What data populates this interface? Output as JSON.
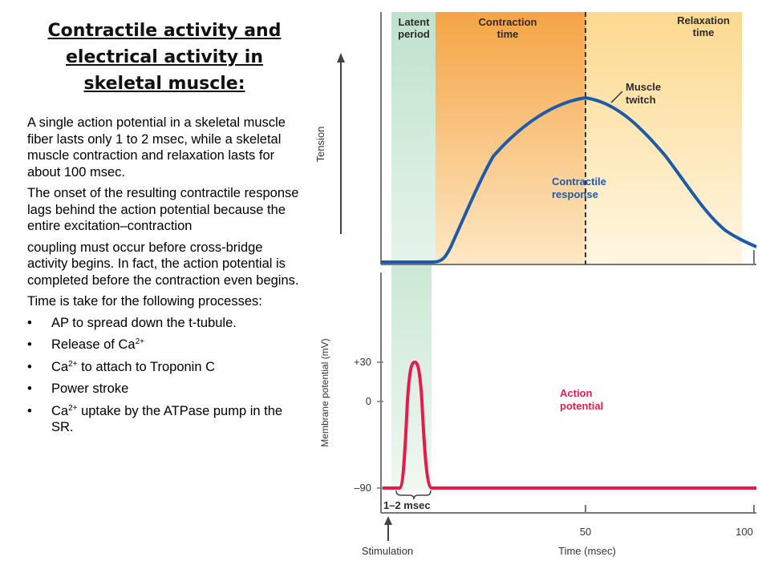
{
  "slide": {
    "title": "Contractile activity and electrical activity in skeletal muscle:",
    "paragraph1": "A single action potential in a skeletal muscle fiber lasts only 1 to 2 msec, while a skeletal muscle contraction and relaxation lasts for about 100 msec.",
    "paragraph2": "The onset of the resulting contractile response lags behind the action potential because the entire excitation–contraction",
    "paragraph3": "coupling must occur before cross-bridge activity begins. In fact, the action potential is completed before the contraction even begins.",
    "paragraph4": "Time is take for the following processes:",
    "bullets": [
      {
        "text": "AP to spread down the t-tubule."
      },
      {
        "text": "Release of Ca",
        "sup": "2+"
      },
      {
        "text": "Ca",
        "sup": "2+",
        "after": " to attach to Troponin C"
      },
      {
        "text": "Power stroke"
      },
      {
        "text": "Ca",
        "sup": "2+",
        "after": " uptake by the ATPase pump in the SR."
      }
    ]
  },
  "diagram": {
    "phase_latent": "Latent period",
    "phase_latent_l1": "Latent",
    "phase_latent_l2": "period",
    "phase_contraction_l1": "Contraction",
    "phase_contraction_l2": "time",
    "phase_relaxation_l1": "Relaxation",
    "phase_relaxation_l2": "time",
    "muscle_twitch_l1": "Muscle",
    "muscle_twitch_l2": "twitch",
    "contractile_l1": "Contractile",
    "contractile_l2": "response",
    "action_l1": "Action",
    "action_l2": "potential",
    "tension_label": "Tension",
    "membrane_label": "Membrane potential (mV)",
    "tick_p30": "+30",
    "tick_0": "0",
    "tick_m90": "–90",
    "duration_label": "1–2 msec",
    "x_tick_50": "50",
    "x_tick_100": "100",
    "stimulation_label": "Stimulation",
    "x_axis_label": "Time (msec)",
    "colors": {
      "latent": "#cfe8d8",
      "contraction": "#f7b25a",
      "relaxation": "#fde6b4",
      "twitch": "#1f5aa8",
      "action": "#e8194b"
    }
  }
}
